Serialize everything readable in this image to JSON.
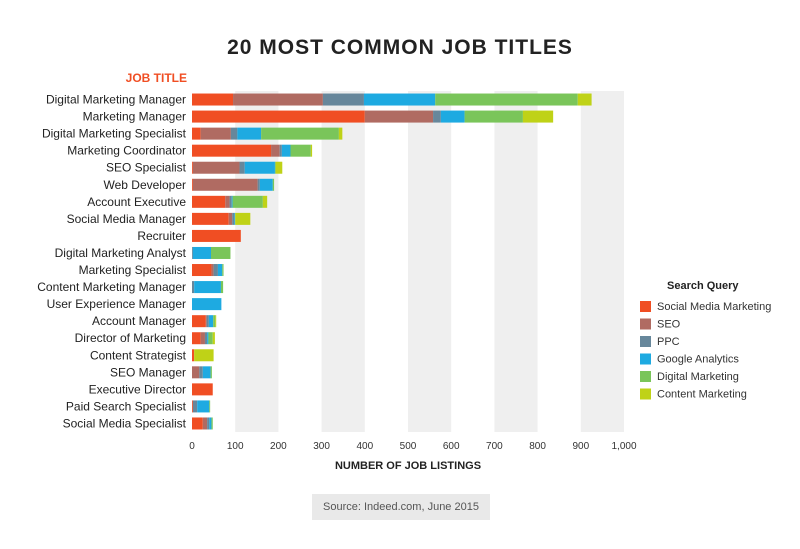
{
  "chart_data": {
    "type": "bar",
    "orientation": "horizontal",
    "stacked": true,
    "title": "20 MOST COMMON JOB TITLES",
    "ylabel": "JOB TITLE",
    "xlabel": "NUMBER OF JOB LISTINGS",
    "xlim": [
      0,
      1000
    ],
    "x_ticks": [
      "0",
      "100",
      "200",
      "300",
      "400",
      "500",
      "600",
      "700",
      "800",
      "900",
      "1,000"
    ],
    "x_tick_values": [
      0,
      100,
      200,
      300,
      400,
      500,
      600,
      700,
      800,
      900,
      1000
    ],
    "grid": "alternating vertical bands",
    "legend_title": "Search Query",
    "legend_position": "right",
    "categories": [
      "Digital Marketing Manager",
      "Marketing Manager",
      "Digital Marketing Specialist",
      "Marketing Coordinator",
      "SEO Specialist",
      "Web Developer",
      "Account Executive",
      "Social Media Manager",
      "Recruiter",
      "Digital Marketing Analyst",
      "Marketing Specialist",
      "Content Marketing Manager",
      "User Experience Manager",
      "Account Manager",
      "Director of Marketing",
      "Content Strategist",
      "SEO Manager",
      "Executive Director",
      "Paid Search Specialist",
      "Social Media Specialist"
    ],
    "series": [
      {
        "name": "Social Media Marketing",
        "color": "#f04e23",
        "values": [
          95,
          400,
          20,
          183,
          2,
          2,
          77,
          85,
          113,
          0,
          45,
          0,
          0,
          32,
          20,
          5,
          0,
          48,
          2,
          25
        ]
      },
      {
        "name": "SEO",
        "color": "#b06b62",
        "values": [
          208,
          158,
          70,
          20,
          108,
          150,
          10,
          8,
          0,
          0,
          5,
          0,
          0,
          2,
          10,
          0,
          17,
          0,
          0,
          10
        ]
      },
      {
        "name": "PPC",
        "color": "#67879b",
        "values": [
          95,
          18,
          15,
          5,
          12,
          5,
          5,
          5,
          0,
          2,
          10,
          5,
          0,
          5,
          5,
          0,
          8,
          0,
          10,
          5
        ]
      },
      {
        "name": "Google Analytics",
        "color": "#1eaae1",
        "values": [
          165,
          55,
          55,
          20,
          70,
          30,
          2,
          2,
          0,
          42,
          10,
          62,
          68,
          10,
          3,
          0,
          18,
          0,
          28,
          5
        ]
      },
      {
        "name": "Digital Marketing",
        "color": "#7ac55a",
        "values": [
          330,
          135,
          180,
          47,
          2,
          3,
          70,
          0,
          0,
          45,
          3,
          5,
          0,
          5,
          10,
          0,
          3,
          0,
          2,
          3
        ]
      },
      {
        "name": "Content Marketing",
        "color": "#bfd217",
        "values": [
          32,
          70,
          8,
          3,
          15,
          0,
          10,
          35,
          0,
          0,
          0,
          0,
          0,
          2,
          5,
          45,
          0,
          0,
          0,
          0
        ]
      }
    ]
  },
  "source": "Source: Indeed.com, June 2015"
}
